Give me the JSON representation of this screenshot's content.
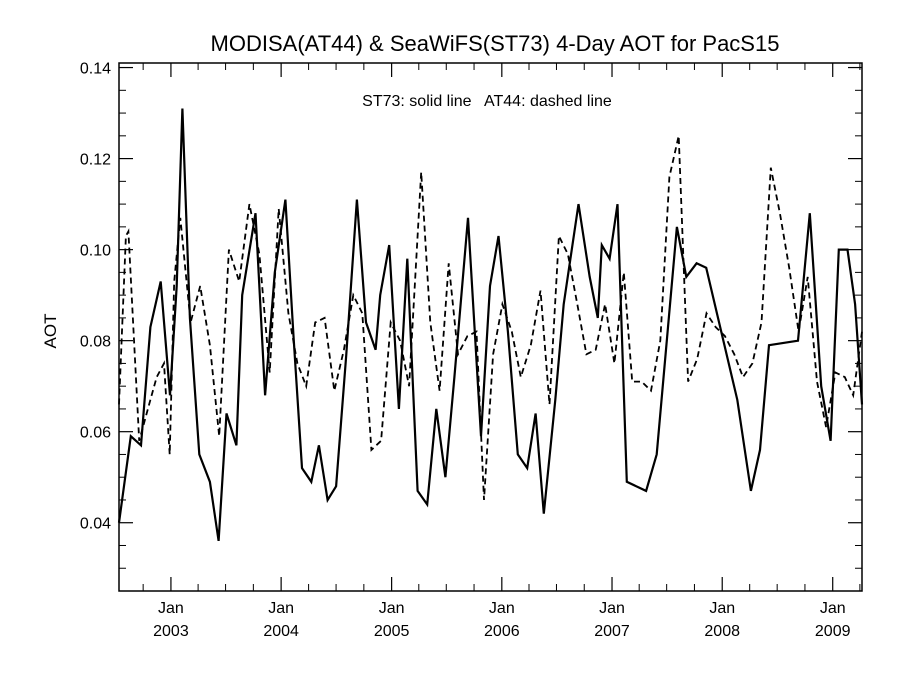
{
  "chart_data": {
    "type": "line",
    "title": "MODISA(AT44) & SeaWiFS(ST73) 4-Day AOT for PacS15",
    "annotation": "ST73: solid line   AT44: dashed line",
    "xlabel": "",
    "ylabel": "AOT",
    "x_range": [
      "2002-07-13",
      "2009-04-08"
    ],
    "ylim": [
      0.025,
      0.141
    ],
    "y_ticks": [
      {
        "value": 0.04,
        "label": "0.04"
      },
      {
        "value": 0.06,
        "label": "0.06"
      },
      {
        "value": 0.08,
        "label": "0.08"
      },
      {
        "value": 0.1,
        "label": "0.10"
      },
      {
        "value": 0.12,
        "label": "0.12"
      },
      {
        "value": 0.14,
        "label": "0.14"
      }
    ],
    "x_ticks": [
      {
        "date": "2003-01-01",
        "month": "Jan",
        "year": "2003"
      },
      {
        "date": "2004-01-01",
        "month": "Jan",
        "year": "2004"
      },
      {
        "date": "2005-01-01",
        "month": "Jan",
        "year": "2005"
      },
      {
        "date": "2006-01-01",
        "month": "Jan",
        "year": "2006"
      },
      {
        "date": "2007-01-01",
        "month": "Jan",
        "year": "2007"
      },
      {
        "date": "2008-01-01",
        "month": "Jan",
        "year": "2008"
      },
      {
        "date": "2009-01-01",
        "month": "Jan",
        "year": "2009"
      }
    ],
    "grid": false,
    "series": [
      {
        "name": "ST73",
        "style": "solid",
        "color": "#000000",
        "points": [
          [
            "2002-07-13",
            0.04
          ],
          [
            "2002-08-21",
            0.059
          ],
          [
            "2002-09-24",
            0.057
          ],
          [
            "2002-10-25",
            0.083
          ],
          [
            "2002-11-28",
            0.093
          ],
          [
            "2002-12-29",
            0.068
          ],
          [
            "2003-01-20",
            0.092
          ],
          [
            "2003-02-08",
            0.131
          ],
          [
            "2003-03-05",
            0.085
          ],
          [
            "2003-04-05",
            0.055
          ],
          [
            "2003-05-10",
            0.049
          ],
          [
            "2003-06-08",
            0.036
          ],
          [
            "2003-07-04",
            0.064
          ],
          [
            "2003-08-06",
            0.057
          ],
          [
            "2003-08-25",
            0.09
          ],
          [
            "2003-10-08",
            0.108
          ],
          [
            "2003-11-09",
            0.068
          ],
          [
            "2003-12-11",
            0.095
          ],
          [
            "2004-01-15",
            0.111
          ],
          [
            "2004-02-11",
            0.081
          ],
          [
            "2004-03-10",
            0.052
          ],
          [
            "2004-04-10",
            0.049
          ],
          [
            "2004-05-05",
            0.057
          ],
          [
            "2004-06-03",
            0.045
          ],
          [
            "2004-07-01",
            0.048
          ],
          [
            "2004-08-04",
            0.077
          ],
          [
            "2004-09-08",
            0.111
          ],
          [
            "2004-10-08",
            0.084
          ],
          [
            "2004-11-09",
            0.078
          ],
          [
            "2004-11-24",
            0.09
          ],
          [
            "2004-12-24",
            0.101
          ],
          [
            "2005-01-25",
            0.065
          ],
          [
            "2005-02-22",
            0.098
          ],
          [
            "2005-03-28",
            0.047
          ],
          [
            "2005-04-29",
            0.044
          ],
          [
            "2005-05-29",
            0.065
          ],
          [
            "2005-06-28",
            0.05
          ],
          [
            "2005-07-28",
            0.072
          ],
          [
            "2005-09-11",
            0.107
          ],
          [
            "2005-10-24",
            0.059
          ],
          [
            "2005-11-23",
            0.092
          ],
          [
            "2005-12-21",
            0.103
          ],
          [
            "2006-01-21",
            0.082
          ],
          [
            "2006-02-23",
            0.055
          ],
          [
            "2006-03-26",
            0.052
          ],
          [
            "2006-04-23",
            0.064
          ],
          [
            "2006-05-20",
            0.042
          ],
          [
            "2006-06-27",
            0.067
          ],
          [
            "2006-07-25",
            0.088
          ],
          [
            "2006-09-12",
            0.11
          ],
          [
            "2006-10-19",
            0.094
          ],
          [
            "2006-11-15",
            0.085
          ],
          [
            "2006-11-28",
            0.101
          ],
          [
            "2006-12-24",
            0.098
          ],
          [
            "2007-01-19",
            0.11
          ],
          [
            "2007-02-19",
            0.049
          ],
          [
            "2007-04-24",
            0.047
          ],
          [
            "2007-05-29",
            0.055
          ],
          [
            "2007-08-04",
            0.105
          ],
          [
            "2007-09-04",
            0.094
          ],
          [
            "2007-10-08",
            0.097
          ],
          [
            "2007-11-09",
            0.096
          ],
          [
            "2008-02-20",
            0.067
          ],
          [
            "2008-04-05",
            0.047
          ],
          [
            "2008-05-05",
            0.056
          ],
          [
            "2008-06-04",
            0.079
          ],
          [
            "2008-09-08",
            0.08
          ],
          [
            "2008-10-17",
            0.108
          ],
          [
            "2008-11-24",
            0.07
          ],
          [
            "2008-12-25",
            0.058
          ],
          [
            "2009-01-21",
            0.1
          ],
          [
            "2009-02-19",
            0.1
          ],
          [
            "2009-03-16",
            0.088
          ],
          [
            "2009-04-08",
            0.066
          ]
        ]
      },
      {
        "name": "AT44",
        "style": "dashed",
        "color": "#000000",
        "points": [
          [
            "2002-07-13",
            0.066
          ],
          [
            "2002-08-05",
            0.103
          ],
          [
            "2002-08-13",
            0.104
          ],
          [
            "2002-09-18",
            0.058
          ],
          [
            "2002-10-25",
            0.067
          ],
          [
            "2002-11-15",
            0.072
          ],
          [
            "2002-12-09",
            0.075
          ],
          [
            "2002-12-28",
            0.055
          ],
          [
            "2003-01-12",
            0.093
          ],
          [
            "2003-02-01",
            0.107
          ],
          [
            "2003-03-07",
            0.084
          ],
          [
            "2003-04-08",
            0.092
          ],
          [
            "2003-05-10",
            0.079
          ],
          [
            "2003-06-10",
            0.059
          ],
          [
            "2003-07-12",
            0.1
          ],
          [
            "2003-08-15",
            0.093
          ],
          [
            "2003-09-18",
            0.11
          ],
          [
            "2003-10-21",
            0.099
          ],
          [
            "2003-11-24",
            0.073
          ],
          [
            "2003-12-24",
            0.109
          ],
          [
            "2004-01-25",
            0.086
          ],
          [
            "2004-02-24",
            0.075
          ],
          [
            "2004-03-24",
            0.07
          ],
          [
            "2004-04-23",
            0.084
          ],
          [
            "2004-05-24",
            0.085
          ],
          [
            "2004-06-25",
            0.069
          ],
          [
            "2004-07-27",
            0.078
          ],
          [
            "2004-08-27",
            0.09
          ],
          [
            "2004-09-26",
            0.086
          ],
          [
            "2004-10-26",
            0.056
          ],
          [
            "2004-11-27",
            0.058
          ],
          [
            "2004-12-29",
            0.084
          ],
          [
            "2005-01-29",
            0.08
          ],
          [
            "2005-02-28",
            0.07
          ],
          [
            "2005-04-09",
            0.117
          ],
          [
            "2005-05-09",
            0.084
          ],
          [
            "2005-06-09",
            0.069
          ],
          [
            "2005-07-09",
            0.097
          ],
          [
            "2005-08-09",
            0.077
          ],
          [
            "2005-09-09",
            0.081
          ],
          [
            "2005-10-09",
            0.082
          ],
          [
            "2005-11-03",
            0.045
          ],
          [
            "2005-12-03",
            0.077
          ],
          [
            "2006-01-03",
            0.088
          ],
          [
            "2006-02-03",
            0.082
          ],
          [
            "2006-03-05",
            0.072
          ],
          [
            "2006-04-07",
            0.079
          ],
          [
            "2006-05-09",
            0.091
          ],
          [
            "2006-06-08",
            0.066
          ],
          [
            "2006-07-09",
            0.103
          ],
          [
            "2006-08-08",
            0.099
          ],
          [
            "2006-09-08",
            0.088
          ],
          [
            "2006-10-08",
            0.077
          ],
          [
            "2006-11-08",
            0.078
          ],
          [
            "2006-12-09",
            0.088
          ],
          [
            "2007-01-09",
            0.075
          ],
          [
            "2007-02-09",
            0.095
          ],
          [
            "2007-03-09",
            0.071
          ],
          [
            "2007-04-09",
            0.071
          ],
          [
            "2007-05-10",
            0.069
          ],
          [
            "2007-06-10",
            0.08
          ],
          [
            "2007-07-10",
            0.116
          ],
          [
            "2007-08-10",
            0.125
          ],
          [
            "2007-09-10",
            0.071
          ],
          [
            "2007-10-10",
            0.076
          ],
          [
            "2007-11-10",
            0.086
          ],
          [
            "2007-12-10",
            0.083
          ],
          [
            "2008-01-10",
            0.081
          ],
          [
            "2008-02-10",
            0.077
          ],
          [
            "2008-03-10",
            0.072
          ],
          [
            "2008-04-10",
            0.075
          ],
          [
            "2008-05-10",
            0.084
          ],
          [
            "2008-06-10",
            0.118
          ],
          [
            "2008-07-10",
            0.108
          ],
          [
            "2008-08-10",
            0.096
          ],
          [
            "2008-09-10",
            0.082
          ],
          [
            "2008-10-10",
            0.094
          ],
          [
            "2008-11-10",
            0.071
          ],
          [
            "2008-12-10",
            0.061
          ],
          [
            "2009-01-10",
            0.073
          ],
          [
            "2009-02-10",
            0.072
          ],
          [
            "2009-03-10",
            0.068
          ],
          [
            "2009-04-08",
            0.082
          ]
        ]
      }
    ]
  }
}
